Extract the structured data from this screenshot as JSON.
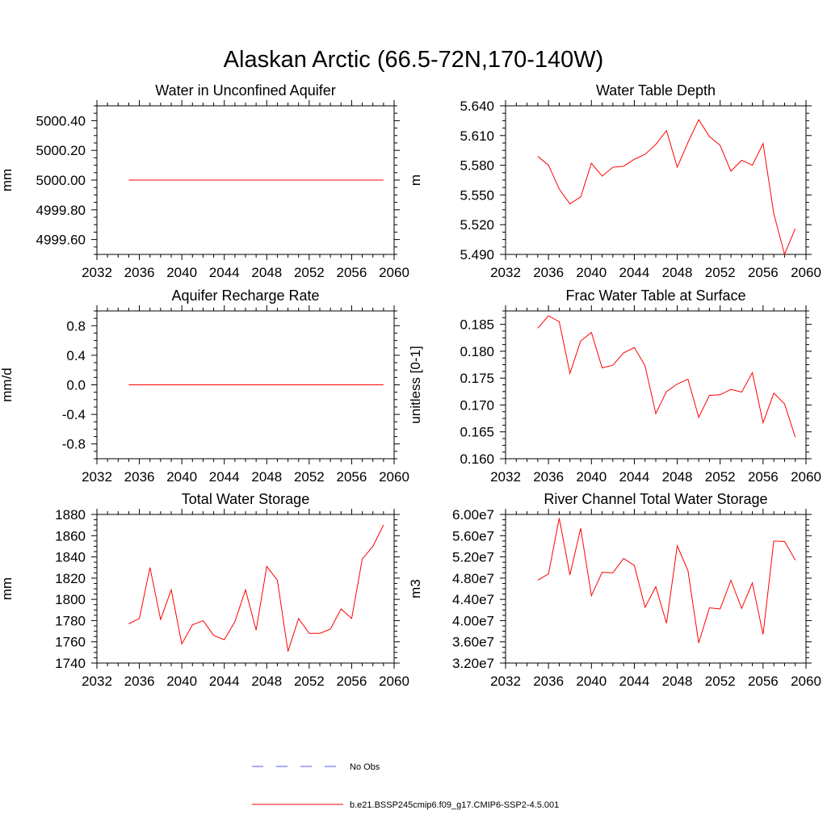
{
  "title": "Alaskan Arctic (66.5-72N,170-140W)",
  "colors": {
    "model": "#ff0000",
    "obs": "#5555ff",
    "axis": "#000000"
  },
  "legend": {
    "entries": [
      {
        "label": "No Obs",
        "style": "dashed",
        "color": "#5555ff"
      },
      {
        "label": "b.e21.BSSP245cmip6.f09_g17.CMIP6-SSP2-4.5.001",
        "style": "solid",
        "color": "#ff0000"
      }
    ]
  },
  "chart_data": [
    {
      "type": "line",
      "title": "Water in Unconfined Aquifer",
      "ylabel": "mm",
      "xlim": [
        2032,
        2060
      ],
      "ylim": [
        4999.5,
        5000.5
      ],
      "xticks": [
        "2032",
        "2036",
        "2040",
        "2044",
        "2048",
        "2052",
        "2056",
        "2060"
      ],
      "yticks": [
        "4999.60",
        "4999.80",
        "5000.00",
        "5000.20",
        "5000.40"
      ],
      "x": [
        2035,
        2036,
        2037,
        2038,
        2039,
        2040,
        2041,
        2042,
        2043,
        2044,
        2045,
        2046,
        2047,
        2048,
        2049,
        2050,
        2051,
        2052,
        2053,
        2054,
        2055,
        2056,
        2057,
        2058,
        2059
      ],
      "series": [
        {
          "color": "#ff0000",
          "values": [
            5000,
            5000,
            5000,
            5000,
            5000,
            5000,
            5000,
            5000,
            5000,
            5000,
            5000,
            5000,
            5000,
            5000,
            5000,
            5000,
            5000,
            5000,
            5000,
            5000,
            5000,
            5000,
            5000,
            5000,
            5000
          ]
        }
      ]
    },
    {
      "type": "line",
      "title": "Water Table Depth",
      "ylabel": "m",
      "xlim": [
        2032,
        2060
      ],
      "ylim": [
        5.49,
        5.64
      ],
      "xticks": [
        "2032",
        "2036",
        "2040",
        "2044",
        "2048",
        "2052",
        "2056",
        "2060"
      ],
      "yticks": [
        "5.490",
        "5.520",
        "5.550",
        "5.580",
        "5.610",
        "5.640"
      ],
      "x": [
        2035,
        2036,
        2037,
        2038,
        2039,
        2040,
        2041,
        2042,
        2043,
        2044,
        2045,
        2046,
        2047,
        2048,
        2049,
        2050,
        2051,
        2052,
        2053,
        2054,
        2055,
        2056,
        2057,
        2058,
        2059
      ],
      "series": [
        {
          "color": "#ff0000",
          "values": [
            5.589,
            5.58,
            5.556,
            5.541,
            5.548,
            5.582,
            5.569,
            5.578,
            5.579,
            5.586,
            5.591,
            5.601,
            5.615,
            5.578,
            5.603,
            5.626,
            5.609,
            5.6,
            5.574,
            5.585,
            5.58,
            5.602,
            5.531,
            5.49,
            5.516
          ]
        }
      ]
    },
    {
      "type": "line",
      "title": "Aquifer Recharge Rate",
      "ylabel": "mm/d",
      "xlim": [
        2032,
        2060
      ],
      "ylim": [
        -1.0,
        1.0
      ],
      "xticks": [
        "2032",
        "2036",
        "2040",
        "2044",
        "2048",
        "2052",
        "2056",
        "2060"
      ],
      "yticks": [
        "-0.8",
        "-0.4",
        "0.0",
        "0.4",
        "0.8"
      ],
      "x": [
        2035,
        2036,
        2037,
        2038,
        2039,
        2040,
        2041,
        2042,
        2043,
        2044,
        2045,
        2046,
        2047,
        2048,
        2049,
        2050,
        2051,
        2052,
        2053,
        2054,
        2055,
        2056,
        2057,
        2058,
        2059
      ],
      "series": [
        {
          "color": "#ff0000",
          "values": [
            0,
            0,
            0,
            0,
            0,
            0,
            0,
            0,
            0,
            0,
            0,
            0,
            0,
            0,
            0,
            0,
            0,
            0,
            0,
            0,
            0,
            0,
            0,
            0,
            0
          ]
        }
      ]
    },
    {
      "type": "line",
      "title": "Frac Water Table at Surface",
      "ylabel": "unitless [0-1]",
      "xlim": [
        2032,
        2060
      ],
      "ylim": [
        0.16,
        0.1875
      ],
      "xticks": [
        "2032",
        "2036",
        "2040",
        "2044",
        "2048",
        "2052",
        "2056",
        "2060"
      ],
      "yticks": [
        "0.160",
        "0.165",
        "0.170",
        "0.175",
        "0.180",
        "0.185"
      ],
      "x": [
        2035,
        2036,
        2037,
        2038,
        2039,
        2040,
        2041,
        2042,
        2043,
        2044,
        2045,
        2046,
        2047,
        2048,
        2049,
        2050,
        2051,
        2052,
        2053,
        2054,
        2055,
        2056,
        2057,
        2058,
        2059
      ],
      "series": [
        {
          "color": "#ff0000",
          "values": [
            0.1843,
            0.1866,
            0.1855,
            0.1759,
            0.1819,
            0.1835,
            0.1769,
            0.1774,
            0.1797,
            0.1807,
            0.1773,
            0.1684,
            0.1725,
            0.1739,
            0.1748,
            0.1677,
            0.1718,
            0.1719,
            0.1729,
            0.1724,
            0.176,
            0.1667,
            0.1722,
            0.1702,
            0.164
          ]
        }
      ]
    },
    {
      "type": "line",
      "title": "Total Water Storage",
      "ylabel": "mm",
      "xlim": [
        2032,
        2060
      ],
      "ylim": [
        1740,
        1880
      ],
      "xticks": [
        "2032",
        "2036",
        "2040",
        "2044",
        "2048",
        "2052",
        "2056",
        "2060"
      ],
      "yticks": [
        "1740",
        "1760",
        "1780",
        "1800",
        "1820",
        "1840",
        "1860",
        "1880"
      ],
      "x": [
        2035,
        2036,
        2037,
        2038,
        2039,
        2040,
        2041,
        2042,
        2043,
        2044,
        2045,
        2046,
        2047,
        2048,
        2049,
        2050,
        2051,
        2052,
        2053,
        2054,
        2055,
        2056,
        2057,
        2058,
        2059
      ],
      "series": [
        {
          "color": "#ff0000",
          "values": [
            1777,
            1782,
            1830,
            1781,
            1809,
            1758,
            1776,
            1780,
            1766,
            1762,
            1779,
            1809,
            1771,
            1831,
            1818,
            1751,
            1782,
            1768,
            1768,
            1772,
            1791,
            1782,
            1838,
            1850,
            1870
          ]
        }
      ]
    },
    {
      "type": "line",
      "title": "River Channel Total Water Storage",
      "ylabel": "m3",
      "xlim": [
        2032,
        2060
      ],
      "ylim": [
        32000000.0,
        60000000.0
      ],
      "xticks": [
        "2032",
        "2036",
        "2040",
        "2044",
        "2048",
        "2052",
        "2056",
        "2060"
      ],
      "yticks": [
        "3.20e7",
        "3.60e7",
        "4.00e7",
        "4.40e7",
        "4.80e7",
        "5.20e7",
        "5.60e7",
        "6.00e7"
      ],
      "x": [
        2035,
        2036,
        2037,
        2038,
        2039,
        2040,
        2041,
        2042,
        2043,
        2044,
        2045,
        2046,
        2047,
        2048,
        2049,
        2050,
        2051,
        2052,
        2053,
        2054,
        2055,
        2056,
        2057,
        2058,
        2059
      ],
      "series": [
        {
          "color": "#ff0000",
          "values": [
            47600000.0,
            48800000.0,
            59300000.0,
            48600000.0,
            57400000.0,
            44700000.0,
            49100000.0,
            49000000.0,
            51700000.0,
            50400000.0,
            42500000.0,
            46400000.0,
            39500000.0,
            54100000.0,
            49400000.0,
            35800000.0,
            42400000.0,
            42200000.0,
            47600000.0,
            42300000.0,
            47100000.0,
            37400000.0,
            55000000.0,
            54900000.0,
            51400000.0
          ]
        }
      ]
    }
  ]
}
